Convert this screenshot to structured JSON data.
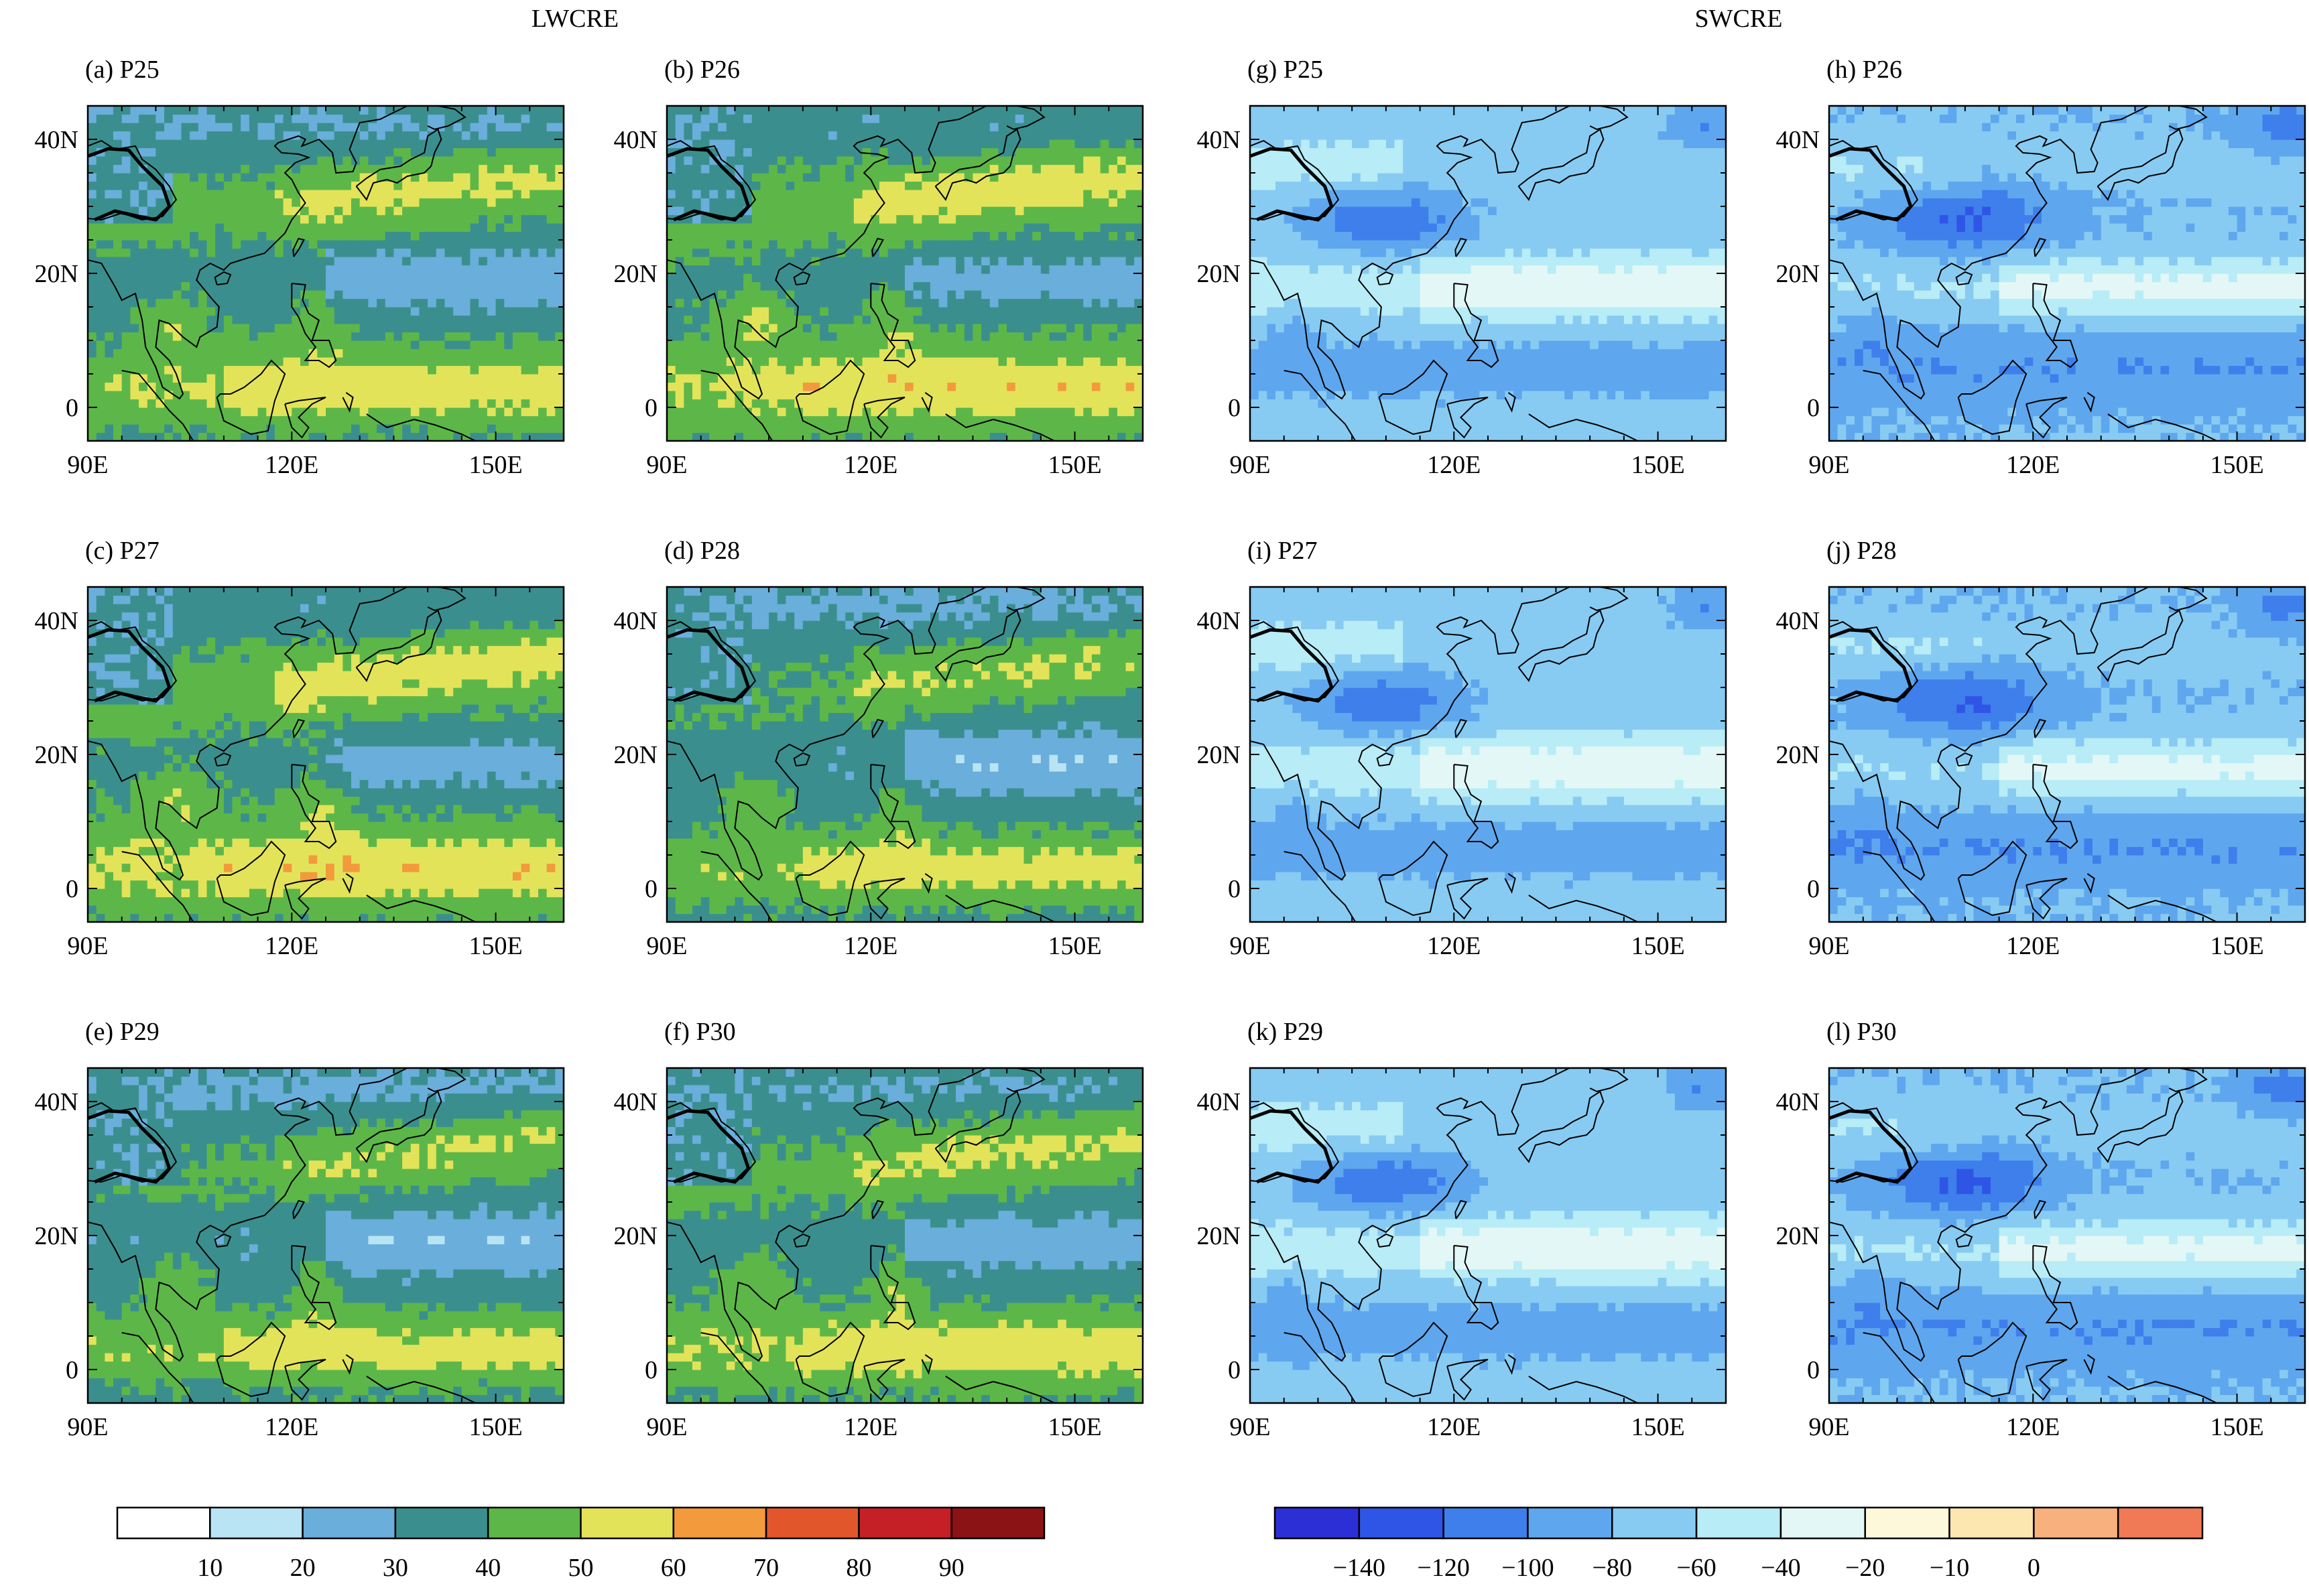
{
  "group_titles": {
    "left": "LWCRE",
    "right": "SWCRE"
  },
  "axes": {
    "lon_ticks": [
      {
        "v": 90,
        "label": "90E"
      },
      {
        "v": 120,
        "label": "120E"
      },
      {
        "v": 150,
        "label": "150E"
      }
    ],
    "lat_ticks": [
      {
        "v": 40,
        "label": "40N"
      },
      {
        "v": 20,
        "label": "20N"
      },
      {
        "v": 0,
        "label": "0"
      }
    ],
    "lon_range": [
      90,
      160
    ],
    "lat_range": [
      -5,
      45
    ]
  },
  "panels": [
    {
      "id": "a",
      "label": "(a) P25",
      "field": "LWCRE",
      "col": 0,
      "row": 0
    },
    {
      "id": "b",
      "label": "(b) P26",
      "field": "LWCRE",
      "col": 1,
      "row": 0
    },
    {
      "id": "g",
      "label": "(g) P25",
      "field": "SWCRE",
      "col": 2,
      "row": 0
    },
    {
      "id": "h",
      "label": "(h) P26",
      "field": "SWCRE",
      "col": 3,
      "row": 0
    },
    {
      "id": "c",
      "label": "(c) P27",
      "field": "LWCRE",
      "col": 0,
      "row": 1
    },
    {
      "id": "d",
      "label": "(d) P28",
      "field": "LWCRE",
      "col": 1,
      "row": 1
    },
    {
      "id": "i",
      "label": "(i) P27",
      "field": "SWCRE",
      "col": 2,
      "row": 1
    },
    {
      "id": "j",
      "label": "(j) P28",
      "field": "SWCRE",
      "col": 3,
      "row": 1
    },
    {
      "id": "e",
      "label": "(e) P29",
      "field": "LWCRE",
      "col": 0,
      "row": 2
    },
    {
      "id": "f",
      "label": "(f) P30",
      "field": "LWCRE",
      "col": 1,
      "row": 2
    },
    {
      "id": "k",
      "label": "(k) P29",
      "field": "SWCRE",
      "col": 2,
      "row": 2
    },
    {
      "id": "l",
      "label": "(l) P30",
      "field": "SWCRE",
      "col": 3,
      "row": 2
    }
  ],
  "colorbars": {
    "lwcre": {
      "colors": [
        "#ffffff",
        "#b8e4f4",
        "#6aaedb",
        "#3a8f8e",
        "#5db748",
        "#e3e35a",
        "#f29a3c",
        "#e2562b",
        "#c52026",
        "#8b1316"
      ],
      "labels": [
        "10",
        "20",
        "30",
        "40",
        "50",
        "60",
        "70",
        "80",
        "90"
      ]
    },
    "swcre": {
      "colors": [
        "#2c2fd6",
        "#2f55e6",
        "#3e7fec",
        "#5ea7ee",
        "#87cbf2",
        "#b8ecf6",
        "#e3f7f7",
        "#fdf8da",
        "#fde7b0",
        "#f7b07e",
        "#f07a55"
      ],
      "labels": [
        "−140",
        "−120",
        "−100",
        "−80",
        "−60",
        "−40",
        "−20",
        "−10",
        "0"
      ]
    }
  }
}
